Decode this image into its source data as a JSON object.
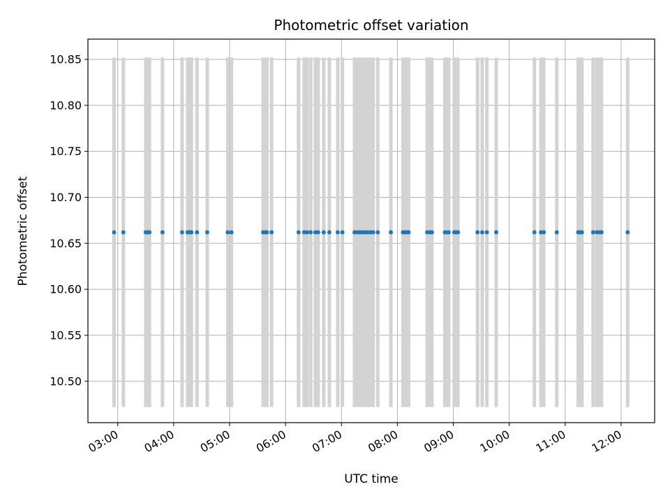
{
  "chart_data": {
    "type": "scatter",
    "title": "Photometric offset variation",
    "xlabel": "UTC time",
    "ylabel": "Photometric offset",
    "x_axis": "time (UTC, hours)",
    "xlim": [
      "02:28",
      "12:36"
    ],
    "ylim": [
      10.455,
      10.872
    ],
    "grid": true,
    "legend": "none",
    "xticks": [
      "03:00",
      "04:00",
      "05:00",
      "06:00",
      "07:00",
      "08:00",
      "09:00",
      "10:00",
      "11:00",
      "12:00"
    ],
    "yticks": [
      "10.50",
      "10.55",
      "10.60",
      "10.65",
      "10.70",
      "10.75",
      "10.80",
      "10.85"
    ],
    "marker_color": "#1f77b4",
    "errorbar_color": "#d3d3d3",
    "series": [
      {
        "x": [
          "02:56",
          "03:06",
          "03:30",
          "03:32",
          "03:34",
          "03:48",
          "04:09",
          "04:15",
          "04:17",
          "04:19",
          "04:25",
          "04:36",
          "04:58",
          "05:02",
          "05:36",
          "05:38",
          "05:40",
          "05:45",
          "06:14",
          "06:20",
          "06:23",
          "06:27",
          "06:32",
          "06:35",
          "06:41",
          "06:47",
          "06:56",
          "07:01",
          "07:14",
          "07:16",
          "07:19",
          "07:22",
          "07:25",
          "07:28",
          "07:31",
          "07:34",
          "07:39",
          "07:53",
          "08:06",
          "08:08",
          "08:10",
          "08:12",
          "08:32",
          "08:35",
          "08:37",
          "08:51",
          "08:53",
          "08:55",
          "09:01",
          "09:03",
          "09:05",
          "09:26",
          "09:31",
          "09:36",
          "09:46",
          "10:27",
          "10:34",
          "10:37",
          "10:51",
          "11:14",
          "11:16",
          "11:18",
          "11:30",
          "11:34",
          "11:37",
          "11:39",
          "12:07"
        ],
        "y": [
          10.662,
          10.662,
          10.662,
          10.662,
          10.662,
          10.662,
          10.662,
          10.662,
          10.662,
          10.662,
          10.662,
          10.662,
          10.662,
          10.662,
          10.662,
          10.662,
          10.662,
          10.662,
          10.662,
          10.662,
          10.662,
          10.662,
          10.662,
          10.662,
          10.662,
          10.662,
          10.662,
          10.662,
          10.662,
          10.662,
          10.662,
          10.662,
          10.662,
          10.662,
          10.662,
          10.662,
          10.662,
          10.662,
          10.662,
          10.662,
          10.662,
          10.662,
          10.662,
          10.662,
          10.662,
          10.662,
          10.662,
          10.662,
          10.662,
          10.662,
          10.662,
          10.662,
          10.662,
          10.662,
          10.662,
          10.662,
          10.662,
          10.662,
          10.662,
          10.662,
          10.662,
          10.662,
          10.662,
          10.662,
          10.662,
          10.662,
          10.662
        ],
        "error_low": 10.472,
        "error_high": 10.852
      }
    ]
  }
}
